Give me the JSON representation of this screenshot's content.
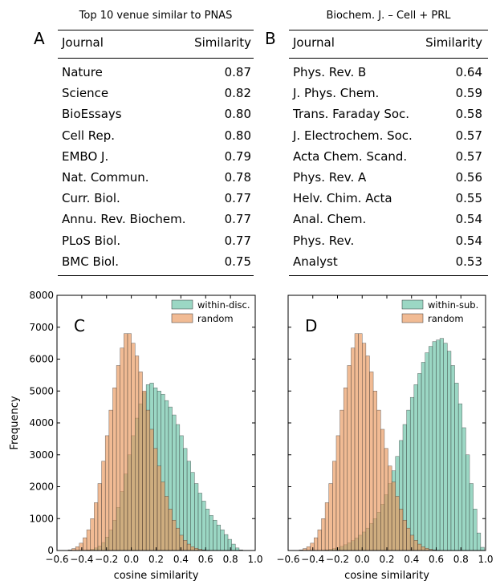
{
  "tables": [
    {
      "letter": "A",
      "title": "Top 10 venue similar to PNAS",
      "col_journal": "Journal",
      "col_similarity": "Similarity",
      "rows": [
        {
          "journal": "Nature",
          "sim": "0.87"
        },
        {
          "journal": "Science",
          "sim": "0.82"
        },
        {
          "journal": "BioEssays",
          "sim": "0.80"
        },
        {
          "journal": "Cell Rep.",
          "sim": "0.80"
        },
        {
          "journal": "EMBO J.",
          "sim": "0.79"
        },
        {
          "journal": "Nat. Commun.",
          "sim": "0.78"
        },
        {
          "journal": "Curr. Biol.",
          "sim": "0.77"
        },
        {
          "journal": "Annu. Rev. Biochem.",
          "sim": "0.77"
        },
        {
          "journal": "PLoS Biol.",
          "sim": "0.77"
        },
        {
          "journal": "BMC Biol.",
          "sim": "0.75"
        }
      ]
    },
    {
      "letter": "B",
      "title": "Biochem. J. – Cell + PRL",
      "col_journal": "Journal",
      "col_similarity": "Similarity",
      "rows": [
        {
          "journal": "Phys. Rev. B",
          "sim": "0.64"
        },
        {
          "journal": "J. Phys. Chem.",
          "sim": "0.59"
        },
        {
          "journal": "Trans. Faraday Soc.",
          "sim": "0.58"
        },
        {
          "journal": "J. Electrochem. Soc.",
          "sim": "0.57"
        },
        {
          "journal": "Acta Chem. Scand.",
          "sim": "0.57"
        },
        {
          "journal": "Phys. Rev. A",
          "sim": "0.56"
        },
        {
          "journal": "Helv. Chim. Acta",
          "sim": "0.55"
        },
        {
          "journal": "Anal. Chem.",
          "sim": "0.54"
        },
        {
          "journal": "Phys. Rev.",
          "sim": "0.54"
        },
        {
          "journal": "Analyst",
          "sim": "0.53"
        }
      ]
    }
  ],
  "colors": {
    "teal": "#66c2a5",
    "orange": "#e9965a",
    "overlap": "#8a6a3c"
  },
  "chart_data": [
    {
      "type": "histogram",
      "letter": "C",
      "xlabel": "cosine similarity",
      "ylabel": "Frequency",
      "xlim": [
        -0.6,
        1.0
      ],
      "ylim": [
        0,
        8000
      ],
      "xticks": [
        "−0.6",
        "−0.4",
        "−0.2",
        "0.0",
        "0.2",
        "0.4",
        "0.6",
        "0.8",
        "1.0"
      ],
      "yticks": [
        "0",
        "1000",
        "2000",
        "3000",
        "4000",
        "5000",
        "6000",
        "7000",
        "8000"
      ],
      "legend_position": "top-right",
      "bin_start": -0.6,
      "bin_width": 0.03,
      "series": [
        {
          "name": "within-disc.",
          "color": "teal",
          "values": [
            0,
            0,
            0,
            0,
            0,
            0,
            0,
            10,
            20,
            40,
            80,
            140,
            250,
            420,
            650,
            950,
            1350,
            1850,
            2400,
            3000,
            3600,
            4150,
            4600,
            4950,
            5200,
            5250,
            5100,
            5000,
            4900,
            4700,
            4500,
            4250,
            3950,
            3600,
            3200,
            2800,
            2450,
            2100,
            1800,
            1550,
            1300,
            1100,
            950,
            800,
            650,
            500,
            350,
            200,
            80,
            20,
            0,
            0,
            0,
            0
          ]
        },
        {
          "name": "random",
          "color": "orange",
          "values": [
            0,
            0,
            0,
            20,
            60,
            120,
            230,
            400,
            650,
            1000,
            1500,
            2100,
            2800,
            3600,
            4400,
            5100,
            5800,
            6350,
            6800,
            6800,
            6500,
            6100,
            5600,
            5000,
            4400,
            3800,
            3200,
            2650,
            2150,
            1700,
            1300,
            950,
            700,
            480,
            320,
            200,
            120,
            70,
            40,
            20,
            10,
            0,
            0,
            0,
            0,
            0,
            0,
            0,
            0,
            0,
            0,
            0,
            0,
            0
          ]
        }
      ]
    },
    {
      "type": "histogram",
      "letter": "D",
      "xlabel": "cosine similarity",
      "ylabel": "",
      "xlim": [
        -0.6,
        1.0
      ],
      "ylim": [
        0,
        8000
      ],
      "xticks": [
        "−0.6",
        "−0.4",
        "−0.2",
        "0.0",
        "0.2",
        "0.4",
        "0.6",
        "0.8",
        "1.0"
      ],
      "yticks": [],
      "legend_position": "top-right",
      "bin_start": -0.6,
      "bin_width": 0.03,
      "series": [
        {
          "name": "within-sub.",
          "color": "teal",
          "values": [
            0,
            0,
            0,
            0,
            0,
            0,
            0,
            0,
            5,
            10,
            20,
            40,
            60,
            90,
            130,
            180,
            240,
            310,
            390,
            480,
            580,
            700,
            850,
            1000,
            1200,
            1450,
            1750,
            2100,
            2500,
            2950,
            3450,
            3950,
            4400,
            4800,
            5200,
            5550,
            5900,
            6200,
            6400,
            6550,
            6600,
            6650,
            6500,
            6250,
            5800,
            5250,
            4600,
            3850,
            3000,
            2100,
            1300,
            550,
            100,
            0
          ]
        },
        {
          "name": "random",
          "color": "orange",
          "values": [
            0,
            0,
            0,
            20,
            60,
            120,
            230,
            400,
            650,
            1000,
            1500,
            2100,
            2800,
            3600,
            4400,
            5100,
            5800,
            6350,
            6800,
            6800,
            6500,
            6100,
            5600,
            5000,
            4400,
            3800,
            3200,
            2650,
            2150,
            1700,
            1300,
            950,
            700,
            480,
            320,
            200,
            120,
            70,
            40,
            20,
            10,
            0,
            0,
            0,
            0,
            0,
            0,
            0,
            0,
            0,
            0,
            0,
            0,
            0
          ]
        }
      ]
    }
  ]
}
